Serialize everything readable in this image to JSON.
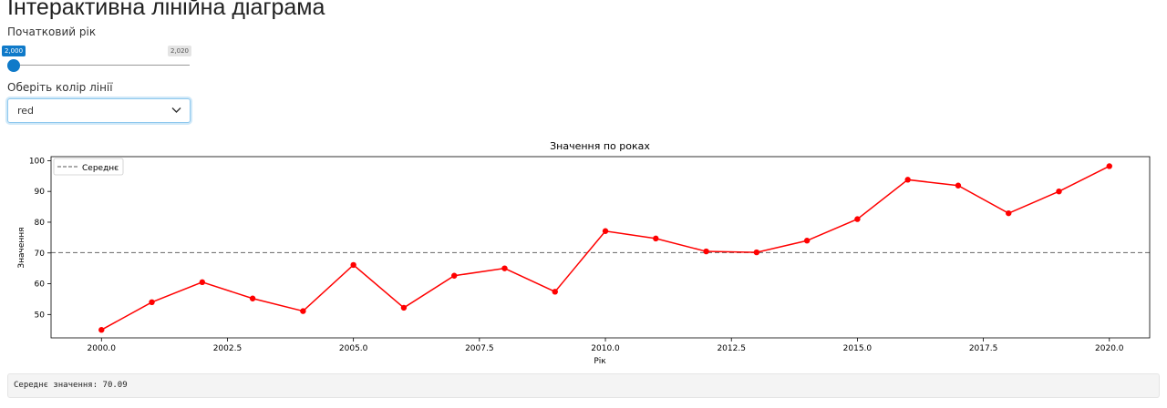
{
  "page": {
    "title": "Інтерактивна лінійна діаграма"
  },
  "controls": {
    "start_year_label": "Початковий рік",
    "start_year_slider": {
      "min_label": "2,000",
      "max_label": "2,020",
      "value": 2000,
      "min": 2000,
      "max": 2020
    },
    "color_label": "Оберіть колір лінії",
    "color_select": {
      "value": "red"
    }
  },
  "chart_data": {
    "type": "line",
    "title": "Значення по роках",
    "xlabel": "Рік",
    "ylabel": "Значення",
    "x": [
      2000,
      2001,
      2002,
      2003,
      2004,
      2005,
      2006,
      2007,
      2008,
      2009,
      2010,
      2011,
      2012,
      2013,
      2014,
      2015,
      2016,
      2017,
      2018,
      2019,
      2020
    ],
    "series": [
      {
        "values": [
          45.0,
          54.0,
          60.5,
          55.2,
          51.1,
          66.1,
          52.2,
          62.6,
          65.0,
          57.4,
          77.1,
          74.7,
          70.5,
          70.2,
          74.0,
          81.0,
          93.8,
          91.9,
          82.9,
          90.0,
          98.2
        ],
        "color": "#ff0000"
      }
    ],
    "mean": 70.09,
    "mean_legend": "Середнє",
    "xticks": [
      "2000.0",
      "2002.5",
      "2005.0",
      "2007.5",
      "2010.0",
      "2012.5",
      "2015.0",
      "2017.5",
      "2020.0"
    ],
    "yticks": [
      "50",
      "60",
      "70",
      "80",
      "90",
      "100"
    ],
    "xlim": [
      1999.0,
      2020.8
    ],
    "ylim": [
      42.4,
      101.3
    ],
    "grid": false,
    "legend_position": "upper-left"
  },
  "mean_output": {
    "text": "Середнє значення: 70.09"
  },
  "colors": {
    "accent": "#0f7ac9",
    "line": "#ff0000",
    "mean_line": "#777777"
  }
}
